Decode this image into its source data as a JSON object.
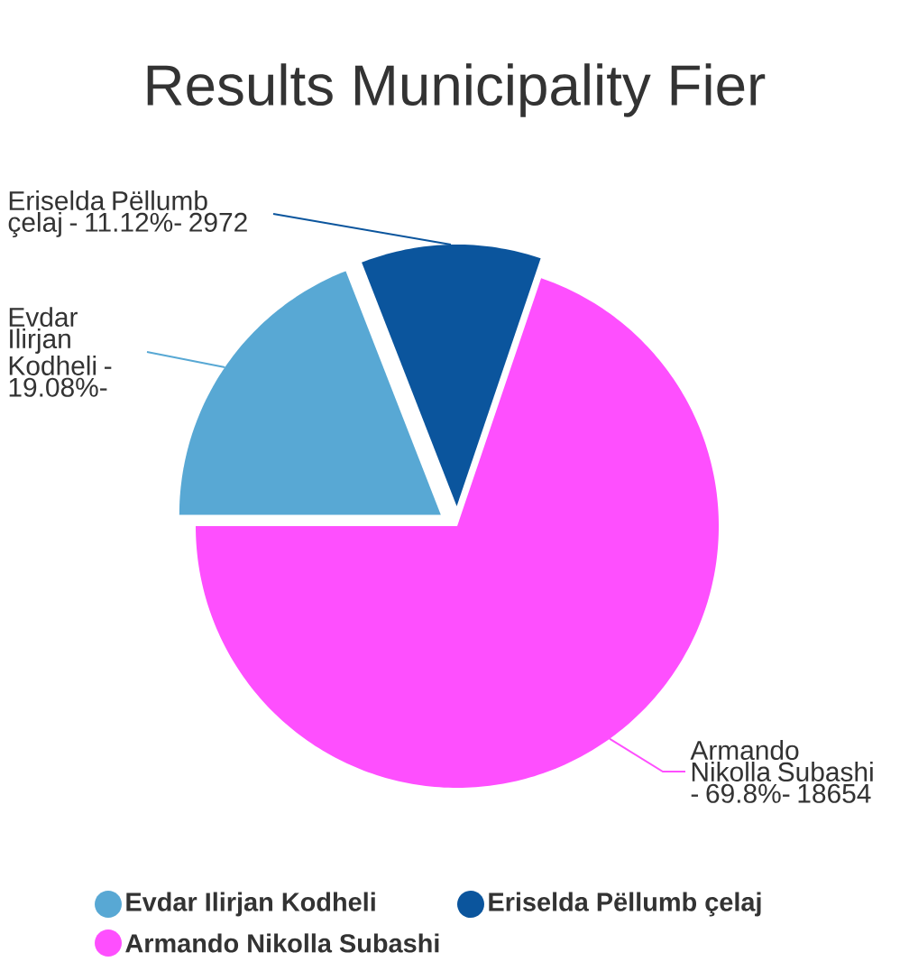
{
  "chart_data": {
    "type": "pie",
    "title": "Results Municipality Fier",
    "categories": [
      "Evdar Ilirjan Kodheli",
      "Eriselda Pëllumb çelaj",
      "Armando Nikolla Subashi"
    ],
    "values": [
      19.08,
      11.12,
      69.8
    ],
    "annotations": [
      "Evdar Ilirjan Kodheli - 19.08%-",
      "Eriselda Pëllumb çelaj - 11.12%- 2972",
      "Armando Nikolla Subashi - 69.8%- 18654"
    ],
    "colors": [
      "#58a8d4",
      "#0b559d",
      "#fe4ffe"
    ],
    "legend": "bottom"
  }
}
